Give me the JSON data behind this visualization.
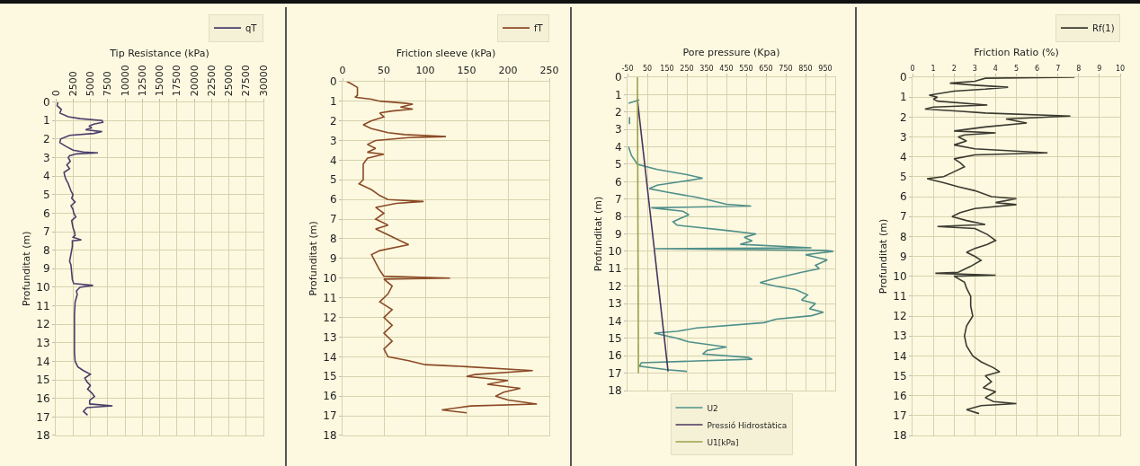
{
  "chart_data": [
    {
      "type": "line",
      "xlabel": "Tip Resistance (kPa)",
      "ylabel": "Profunditat (m)",
      "xlim": [
        0,
        30000
      ],
      "xticks": [
        0,
        2500,
        5000,
        7500,
        10000,
        12500,
        15000,
        17500,
        20000,
        22500,
        25000,
        27500,
        30000
      ],
      "ylim": [
        18,
        0
      ],
      "yticks": [
        0,
        1,
        2,
        3,
        4,
        5,
        6,
        7,
        8,
        9,
        10,
        11,
        12,
        13,
        14,
        15,
        16,
        17,
        18
      ],
      "grid": true,
      "legend": "top right",
      "series": [
        {
          "name": "qT",
          "color": "#4a3f6b",
          "x": [
            300,
            200,
            800,
            600,
            1800,
            3500,
            6700,
            6800,
            5500,
            4800,
            5200,
            4300,
            6700,
            5500,
            2000,
            700,
            600,
            1500,
            2500,
            4000,
            6100,
            3000,
            2000,
            1800,
            2100,
            1600,
            2000,
            1200,
            1300,
            1500,
            1800,
            2000,
            2200,
            2500,
            2300,
            2800,
            2200,
            2500,
            2600,
            2900,
            2300,
            2400,
            2500,
            2700,
            2800,
            2500,
            3700,
            2400,
            2400,
            2200,
            2000,
            2200,
            2300,
            2400,
            2600,
            5400,
            3500,
            3000,
            3100,
            2800,
            2700,
            2700,
            2700,
            2800,
            3200,
            4000,
            5000,
            4200,
            4500,
            5000,
            4600,
            5200,
            5600,
            4900,
            4900,
            8200,
            4500,
            4000,
            4600
          ],
          "values": [
            0,
            0.2,
            0.4,
            0.6,
            0.8,
            0.9,
            1.0,
            1.1,
            1.2,
            1.3,
            1.4,
            1.5,
            1.6,
            1.7,
            1.8,
            2.0,
            2.2,
            2.4,
            2.6,
            2.7,
            2.75,
            2.8,
            2.9,
            3.0,
            3.2,
            3.4,
            3.6,
            3.8,
            4.0,
            4.2,
            4.4,
            4.6,
            4.8,
            5.0,
            5.2,
            5.4,
            5.6,
            5.8,
            6.0,
            6.2,
            6.4,
            6.6,
            6.8,
            7.0,
            7.2,
            7.3,
            7.45,
            7.5,
            7.8,
            8.2,
            8.6,
            8.8,
            9.2,
            9.6,
            9.8,
            9.9,
            10.0,
            10.2,
            10.4,
            10.8,
            11.5,
            12.5,
            13.5,
            14.0,
            14.3,
            14.5,
            14.7,
            14.9,
            15.1,
            15.3,
            15.5,
            15.7,
            15.9,
            16.1,
            16.3,
            16.4,
            16.5,
            16.7,
            16.9
          ]
        }
      ]
    },
    {
      "type": "line",
      "xlabel": "Friction sleeve (kPa)",
      "ylabel": "Profunditat (m)",
      "xlim": [
        0,
        250
      ],
      "xticks": [
        0,
        50,
        100,
        150,
        200,
        250
      ],
      "ylim": [
        18,
        0
      ],
      "yticks": [
        0,
        1,
        2,
        3,
        4,
        5,
        6,
        7,
        8,
        9,
        10,
        11,
        12,
        13,
        14,
        15,
        16,
        17,
        18
      ],
      "grid": true,
      "legend": "top right",
      "series": [
        {
          "name": "fT",
          "color": "#8b4a26",
          "x": [
            5,
            10,
            18,
            18,
            18,
            15,
            35,
            45,
            75,
            85,
            70,
            85,
            60,
            45,
            50,
            35,
            25,
            35,
            55,
            75,
            125,
            80,
            40,
            30,
            40,
            30,
            50,
            30,
            25,
            25,
            25,
            20,
            35,
            45,
            55,
            98,
            65,
            40,
            50,
            40,
            55,
            40,
            55,
            70,
            80,
            45,
            35,
            40,
            45,
            50,
            130,
            50,
            60,
            55,
            45,
            60,
            50,
            60,
            50,
            60,
            50,
            55,
            80,
            100,
            150,
            230,
            160,
            150,
            200,
            175,
            215,
            195,
            185,
            200,
            235,
            155,
            120,
            150
          ],
          "values": [
            0,
            0.1,
            0.3,
            0.5,
            0.7,
            0.8,
            0.9,
            1.0,
            1.1,
            1.15,
            1.3,
            1.4,
            1.5,
            1.6,
            1.8,
            2.0,
            2.2,
            2.4,
            2.6,
            2.7,
            2.8,
            2.85,
            3.0,
            3.2,
            3.4,
            3.6,
            3.7,
            3.9,
            4.2,
            4.6,
            5.0,
            5.2,
            5.5,
            5.8,
            6.0,
            6.1,
            6.2,
            6.4,
            6.7,
            7.0,
            7.3,
            7.5,
            7.8,
            8.1,
            8.3,
            8.6,
            8.8,
            9.2,
            9.6,
            9.9,
            10.0,
            10.05,
            10.4,
            10.8,
            11.2,
            11.6,
            12.0,
            12.4,
            12.8,
            13.2,
            13.6,
            14.0,
            14.2,
            14.4,
            14.5,
            14.7,
            14.9,
            15.0,
            15.2,
            15.4,
            15.6,
            15.8,
            16.0,
            16.2,
            16.4,
            16.5,
            16.7,
            16.85
          ]
        }
      ]
    },
    {
      "type": "line",
      "xlabel": "Pore pressure (Kpa)",
      "ylabel": "Profunditat (m)",
      "xlim": [
        -50,
        1000
      ],
      "xticks": [
        -50,
        50,
        150,
        250,
        350,
        450,
        550,
        650,
        750,
        850,
        950
      ],
      "ylim": [
        18,
        0
      ],
      "yticks": [
        0,
        1,
        2,
        3,
        4,
        5,
        6,
        7,
        8,
        9,
        10,
        11,
        12,
        13,
        14,
        15,
        16,
        17,
        18
      ],
      "grid": true,
      "legend": "bottom",
      "series": [
        {
          "name": "U2",
          "color": "#4f8f8a",
          "x": [
            10,
            -45,
            null,
            -40,
            -40,
            null,
            -45,
            -30,
            0,
            100,
            250,
            330,
            220,
            100,
            60,
            150,
            300,
            380,
            450,
            575,
            70,
            230,
            260,
            220,
            180,
            200,
            450,
            600,
            540,
            580,
            520,
            880,
            90,
            950,
            990,
            850,
            960,
            900,
            920,
            830,
            680,
            620,
            700,
            800,
            860,
            830,
            900,
            870,
            940,
            880,
            700,
            640,
            300,
            200,
            85,
            200,
            260,
            450,
            350,
            330,
            560,
            580,
            300,
            20,
            10,
            150,
            250
          ],
          "values": [
            1.3,
            1.5,
            null,
            2.3,
            2.7,
            null,
            4.0,
            4.5,
            5.0,
            5.3,
            5.6,
            5.8,
            6.0,
            6.2,
            6.4,
            6.6,
            6.9,
            7.1,
            7.3,
            7.4,
            7.5,
            7.7,
            7.9,
            8.1,
            8.3,
            8.5,
            8.8,
            9.0,
            9.2,
            9.4,
            9.6,
            9.8,
            9.85,
            9.95,
            10.0,
            10.2,
            10.5,
            10.8,
            11.0,
            11.2,
            11.6,
            11.8,
            12.0,
            12.2,
            12.5,
            12.8,
            13.0,
            13.3,
            13.5,
            13.7,
            13.9,
            14.1,
            14.4,
            14.6,
            14.7,
            15.0,
            15.2,
            15.5,
            15.7,
            15.9,
            16.1,
            16.2,
            16.3,
            16.4,
            16.6,
            16.8,
            16.9
          ]
        },
        {
          "name": "Pressió Hidrostàtica",
          "color": "#4a3560",
          "x": [
            0,
            155
          ],
          "values": [
            1.3,
            16.9
          ]
        },
        {
          "name": "U1[kPa]",
          "color": "#9aa04a",
          "x": [
            0,
            5
          ],
          "values": [
            0,
            17
          ]
        }
      ]
    },
    {
      "type": "line",
      "xlabel": "Friction Ratio (%)",
      "ylabel": "Profunditat (m)",
      "xlim": [
        0,
        10
      ],
      "xticks": [
        0,
        1,
        2,
        3,
        4,
        5,
        6,
        7,
        8,
        9,
        10
      ],
      "ylim": [
        18,
        0
      ],
      "yticks": [
        0,
        1,
        2,
        3,
        4,
        5,
        6,
        7,
        8,
        9,
        10,
        11,
        12,
        13,
        14,
        15,
        16,
        17,
        18
      ],
      "grid": true,
      "legend": "top right",
      "series": [
        {
          "name": "Rf(1)",
          "color": "#3a3a30",
          "x": [
            7.8,
            3.5,
            3.0,
            1.8,
            3.0,
            4.6,
            3.5,
            2.0,
            0.8,
            1.2,
            1.0,
            1.2,
            3.6,
            1.0,
            0.6,
            2.2,
            3.5,
            7.6,
            4.5,
            5.5,
            3.5,
            2.0,
            4.0,
            2.5,
            2.2,
            2.6,
            2.0,
            3.0,
            6.5,
            3.0,
            2.0,
            2.3,
            2.5,
            1.9,
            1.5,
            0.7,
            1.5,
            2.2,
            3.0,
            3.8,
            5.0,
            4.0,
            5.0,
            3.0,
            2.3,
            1.9,
            2.6,
            3.5,
            1.2,
            3.0,
            3.6,
            4.0,
            3.6,
            3.0,
            2.6,
            3.0,
            3.3,
            2.8,
            2.2,
            1.1,
            4.0,
            2.0,
            2.5,
            2.6,
            2.8,
            2.8,
            2.9,
            2.6,
            2.5,
            2.6,
            2.9,
            3.3,
            3.9,
            4.2,
            3.5,
            3.8,
            3.4,
            4.0,
            3.5,
            3.9,
            5.0,
            3.3,
            2.6,
            3.2
          ],
          "values": [
            0,
            0.05,
            0.2,
            0.3,
            0.4,
            0.5,
            0.6,
            0.7,
            0.9,
            1.0,
            1.1,
            1.2,
            1.4,
            1.5,
            1.6,
            1.7,
            1.8,
            1.95,
            2.1,
            2.3,
            2.5,
            2.7,
            2.8,
            2.9,
            3.0,
            3.2,
            3.4,
            3.6,
            3.8,
            3.9,
            4.1,
            4.3,
            4.5,
            4.8,
            5.0,
            5.1,
            5.3,
            5.5,
            5.7,
            6.0,
            6.1,
            6.3,
            6.4,
            6.6,
            6.8,
            7.0,
            7.2,
            7.4,
            7.5,
            7.6,
            7.9,
            8.2,
            8.4,
            8.6,
            8.8,
            9.0,
            9.2,
            9.5,
            9.8,
            9.85,
            9.95,
            10.0,
            10.3,
            10.6,
            11.0,
            11.5,
            12.0,
            12.5,
            13.0,
            13.5,
            14.0,
            14.3,
            14.6,
            14.8,
            15.0,
            15.3,
            15.6,
            15.8,
            16.1,
            16.3,
            16.4,
            16.5,
            16.7,
            16.9
          ]
        }
      ]
    }
  ]
}
